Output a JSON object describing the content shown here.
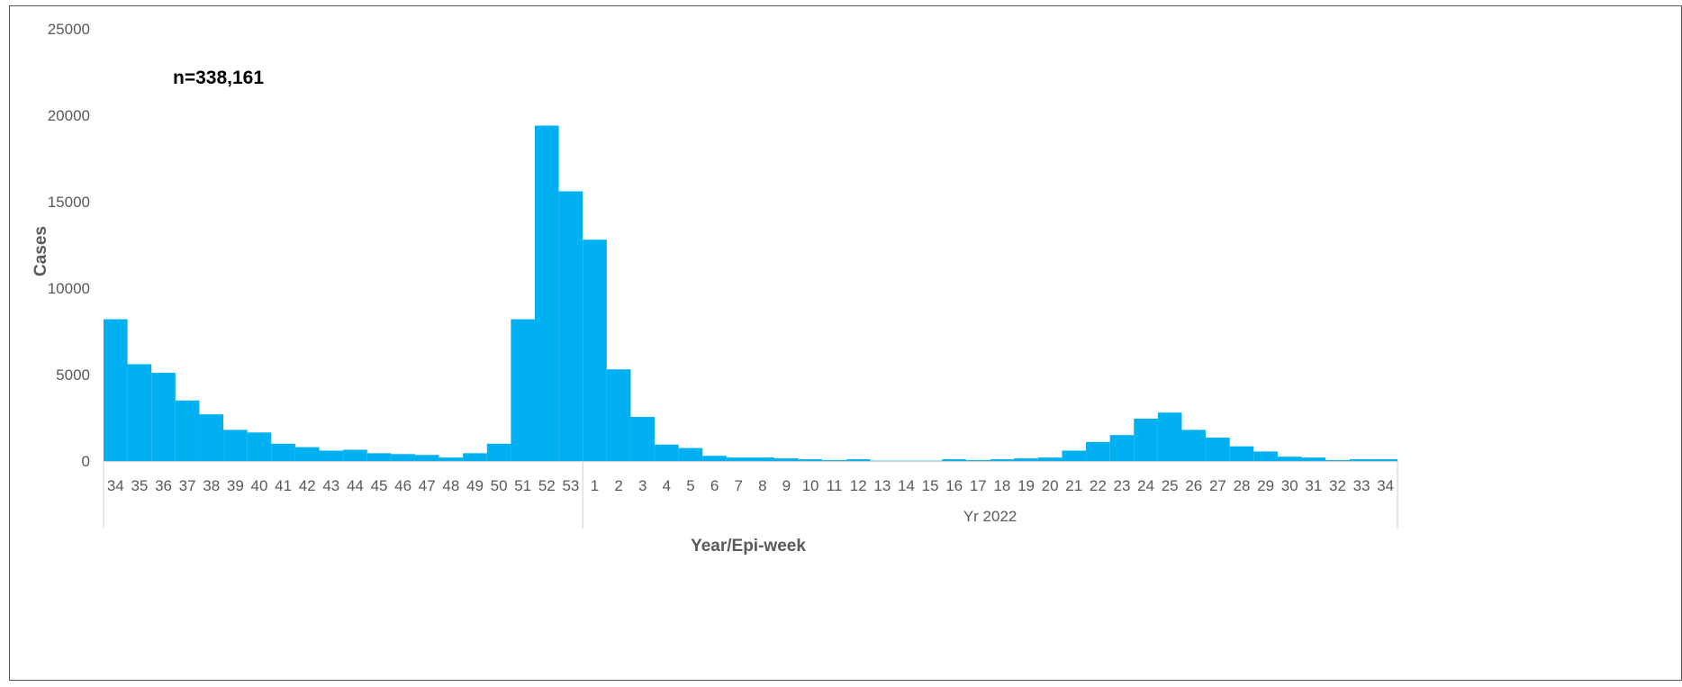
{
  "chart_data": {
    "type": "bar",
    "title": "",
    "annotation": "n=338,161",
    "xlabel": "Year/Epi-week",
    "ylabel": "Cases",
    "ylim": [
      0,
      25000
    ],
    "yticks": [
      0,
      5000,
      10000,
      15000,
      20000,
      25000
    ],
    "grid": false,
    "bar_color": "#00B0F0",
    "categories": [
      "34",
      "35",
      "36",
      "37",
      "38",
      "39",
      "40",
      "41",
      "42",
      "43",
      "44",
      "45",
      "46",
      "47",
      "48",
      "49",
      "50",
      "51",
      "52",
      "53",
      "1",
      "2",
      "3",
      "4",
      "5",
      "6",
      "7",
      "8",
      "9",
      "10",
      "11",
      "12",
      "13",
      "14",
      "15",
      "16",
      "17",
      "18",
      "19",
      "20",
      "21",
      "22",
      "23",
      "24",
      "25",
      "26",
      "27",
      "28",
      "29",
      "30",
      "31",
      "32",
      "33",
      "34"
    ],
    "groups": [
      {
        "label": "",
        "count": 20
      },
      {
        "label": "Yr 2022",
        "count": 34
      }
    ],
    "values": [
      8200,
      5600,
      5100,
      3500,
      2700,
      1800,
      1650,
      1000,
      800,
      600,
      650,
      450,
      400,
      350,
      200,
      450,
      1000,
      8200,
      19400,
      15600,
      12800,
      5300,
      2550,
      950,
      750,
      300,
      200,
      200,
      150,
      100,
      50,
      100,
      20,
      20,
      20,
      100,
      50,
      100,
      150,
      200,
      600,
      1100,
      1500,
      2450,
      2800,
      1800,
      1350,
      850,
      550,
      250,
      200,
      50,
      100,
      100
    ]
  }
}
